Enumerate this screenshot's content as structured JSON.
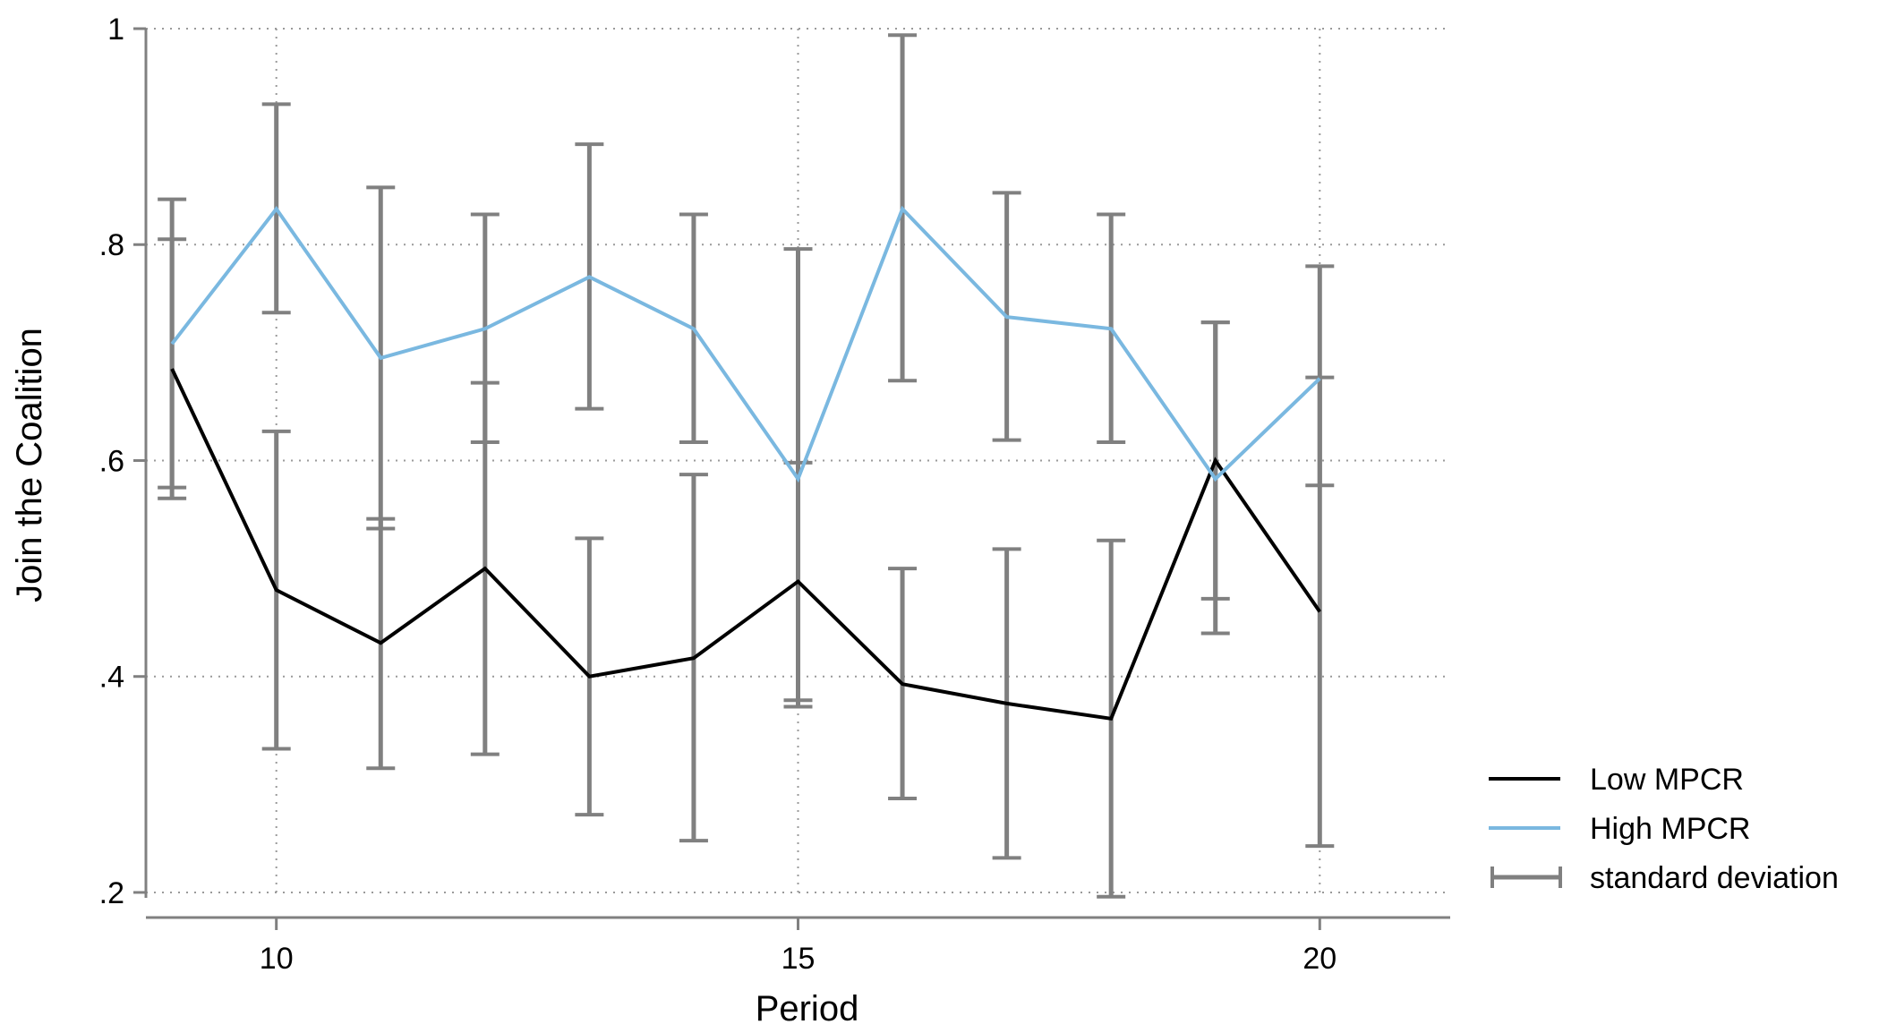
{
  "chart_data": {
    "type": "line",
    "xlabel": "Period",
    "ylabel": "Join the Coalition",
    "xlim": [
      8.75,
      21.25
    ],
    "ylim": [
      0.195,
      1.0
    ],
    "xticks": [
      10,
      15,
      20
    ],
    "xtick_labels": [
      "10",
      "15",
      "20"
    ],
    "yticks": [
      0.2,
      0.4,
      0.6,
      0.8,
      1.0
    ],
    "ytick_labels": [
      ".2",
      ".4",
      ".6",
      ".8",
      "1"
    ],
    "grid": true,
    "legend_position": "bottom-right",
    "x": [
      9,
      10,
      11,
      12,
      13,
      14,
      15,
      16,
      17,
      18,
      19,
      20
    ],
    "series": [
      {
        "name": "Low MPCR",
        "color": "#000000",
        "values": [
          0.685,
          0.48,
          0.431,
          0.5,
          0.4,
          0.417,
          0.488,
          0.393,
          0.375,
          0.361,
          0.6,
          0.46
        ],
        "sd_lower": [
          0.565,
          0.333,
          0.315,
          0.328,
          0.272,
          0.248,
          0.378,
          0.287,
          0.232,
          0.196,
          0.472,
          0.243
        ],
        "sd_upper": [
          0.805,
          0.627,
          0.546,
          0.672,
          0.528,
          0.587,
          0.598,
          0.5,
          0.518,
          0.526,
          0.728,
          0.677
        ]
      },
      {
        "name": "High MPCR",
        "color": "#7ab8e0",
        "values": [
          0.708,
          0.833,
          0.695,
          0.722,
          0.77,
          0.722,
          0.583,
          0.833,
          0.733,
          0.722,
          0.583,
          0.676
        ],
        "sd_lower": [
          0.575,
          0.737,
          0.537,
          0.617,
          0.648,
          0.617,
          0.372,
          0.674,
          0.619,
          0.617,
          0.44,
          0.577
        ],
        "sd_upper": [
          0.842,
          0.93,
          0.853,
          0.828,
          0.893,
          0.828,
          0.796,
          0.994,
          0.848,
          0.828,
          0.728,
          0.78
        ]
      }
    ],
    "error_bars": {
      "name": "standard deviation",
      "color": "#808080"
    }
  }
}
